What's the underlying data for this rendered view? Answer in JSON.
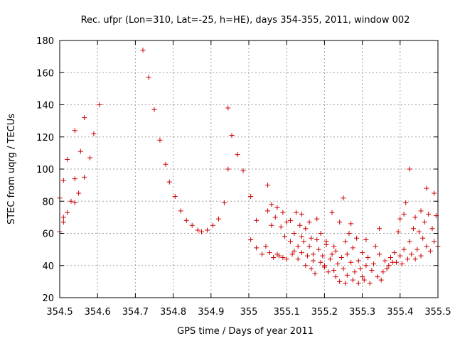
{
  "chart_data": {
    "type": "scatter",
    "title": "Rec. ufpr (Lon=310, Lat=-25, h=HE), days 354-355, 2011, window 002",
    "xlabel": "GPS time / Days of year 2011",
    "ylabel": "STEC from uqrg / TECUs",
    "xlim": [
      354.5,
      355.5
    ],
    "ylim": [
      20,
      180
    ],
    "xticks": [
      "354.5",
      "354.6",
      "354.7",
      "354.8",
      "354.9",
      "355",
      "355.1",
      "355.2",
      "355.3",
      "355.4",
      "355.5"
    ],
    "yticks": [
      "20",
      "40",
      "60",
      "80",
      "100",
      "120",
      "140",
      "160",
      "180"
    ],
    "grid": true,
    "marker": "+",
    "color": "#cc0000",
    "points": [
      [
        354.5,
        61
      ],
      [
        354.5,
        82
      ],
      [
        354.51,
        67
      ],
      [
        354.51,
        70
      ],
      [
        354.51,
        93
      ],
      [
        354.52,
        73
      ],
      [
        354.52,
        106
      ],
      [
        354.53,
        80
      ],
      [
        354.54,
        79
      ],
      [
        354.54,
        94
      ],
      [
        354.54,
        124
      ],
      [
        354.55,
        85
      ],
      [
        354.555,
        111
      ],
      [
        354.565,
        95
      ],
      [
        354.565,
        132
      ],
      [
        354.58,
        107
      ],
      [
        354.59,
        122
      ],
      [
        354.605,
        140
      ],
      [
        354.72,
        174
      ],
      [
        354.735,
        157
      ],
      [
        354.75,
        137
      ],
      [
        354.765,
        118
      ],
      [
        354.78,
        103
      ],
      [
        354.79,
        92
      ],
      [
        354.805,
        83
      ],
      [
        354.82,
        74
      ],
      [
        354.835,
        68
      ],
      [
        354.85,
        65
      ],
      [
        354.865,
        62
      ],
      [
        354.875,
        61
      ],
      [
        354.89,
        62
      ],
      [
        354.905,
        65
      ],
      [
        354.92,
        69
      ],
      [
        354.935,
        79
      ],
      [
        354.945,
        100
      ],
      [
        354.945,
        138
      ],
      [
        354.955,
        121
      ],
      [
        354.97,
        109
      ],
      [
        354.985,
        99
      ],
      [
        355.005,
        83
      ],
      [
        355.005,
        56
      ],
      [
        355.02,
        68
      ],
      [
        355.02,
        51
      ],
      [
        355.035,
        47
      ],
      [
        355.045,
        52
      ],
      [
        355.05,
        74
      ],
      [
        355.05,
        90
      ],
      [
        355.055,
        48
      ],
      [
        355.06,
        65
      ],
      [
        355.06,
        78
      ],
      [
        355.065,
        45
      ],
      [
        355.07,
        70
      ],
      [
        355.075,
        76
      ],
      [
        355.075,
        47
      ],
      [
        355.08,
        46
      ],
      [
        355.085,
        64
      ],
      [
        355.09,
        73
      ],
      [
        355.09,
        45
      ],
      [
        355.095,
        58
      ],
      [
        355.1,
        67
      ],
      [
        355.1,
        44
      ],
      [
        355.11,
        68
      ],
      [
        355.11,
        55
      ],
      [
        355.115,
        47
      ],
      [
        355.12,
        60
      ],
      [
        355.12,
        49
      ],
      [
        355.125,
        73
      ],
      [
        355.13,
        44
      ],
      [
        355.13,
        52
      ],
      [
        355.135,
        65
      ],
      [
        355.14,
        72
      ],
      [
        355.14,
        58
      ],
      [
        355.14,
        48
      ],
      [
        355.145,
        55
      ],
      [
        355.15,
        40
      ],
      [
        355.15,
        63
      ],
      [
        355.155,
        46
      ],
      [
        355.16,
        52
      ],
      [
        355.16,
        67
      ],
      [
        355.165,
        38
      ],
      [
        355.165,
        57
      ],
      [
        355.17,
        47
      ],
      [
        355.17,
        43
      ],
      [
        355.175,
        35
      ],
      [
        355.18,
        56
      ],
      [
        355.18,
        69
      ],
      [
        355.185,
        50
      ],
      [
        355.19,
        42
      ],
      [
        355.19,
        60
      ],
      [
        355.195,
        46
      ],
      [
        355.2,
        39
      ],
      [
        355.2,
        40
      ],
      [
        355.205,
        55
      ],
      [
        355.205,
        53
      ],
      [
        355.21,
        36
      ],
      [
        355.215,
        44
      ],
      [
        355.22,
        47
      ],
      [
        355.22,
        73
      ],
      [
        355.225,
        37
      ],
      [
        355.225,
        52
      ],
      [
        355.23,
        33
      ],
      [
        355.23,
        49
      ],
      [
        355.235,
        41
      ],
      [
        355.24,
        30
      ],
      [
        355.24,
        67
      ],
      [
        355.245,
        45
      ],
      [
        355.25,
        38
      ],
      [
        355.25,
        82
      ],
      [
        355.255,
        29
      ],
      [
        355.255,
        55
      ],
      [
        355.26,
        34
      ],
      [
        355.26,
        47
      ],
      [
        355.265,
        60
      ],
      [
        355.27,
        42
      ],
      [
        355.27,
        66
      ],
      [
        355.275,
        31
      ],
      [
        355.275,
        51
      ],
      [
        355.28,
        36
      ],
      [
        355.285,
        57
      ],
      [
        355.29,
        29
      ],
      [
        355.29,
        43
      ],
      [
        355.295,
        38
      ],
      [
        355.3,
        48
      ],
      [
        355.3,
        33
      ],
      [
        355.305,
        31
      ],
      [
        355.31,
        56
      ],
      [
        355.31,
        40
      ],
      [
        355.315,
        45
      ],
      [
        355.32,
        29
      ],
      [
        355.325,
        37
      ],
      [
        355.33,
        41
      ],
      [
        355.335,
        52
      ],
      [
        355.34,
        33
      ],
      [
        355.345,
        47
      ],
      [
        355.345,
        63
      ],
      [
        355.35,
        31
      ],
      [
        355.355,
        36
      ],
      [
        355.36,
        43
      ],
      [
        355.365,
        38
      ],
      [
        355.37,
        40
      ],
      [
        355.375,
        45
      ],
      [
        355.38,
        42
      ],
      [
        355.385,
        48
      ],
      [
        355.39,
        42
      ],
      [
        355.395,
        61
      ],
      [
        355.4,
        46
      ],
      [
        355.4,
        69
      ],
      [
        355.405,
        41
      ],
      [
        355.41,
        50
      ],
      [
        355.41,
        72
      ],
      [
        355.415,
        79
      ],
      [
        355.42,
        44
      ],
      [
        355.425,
        55
      ],
      [
        355.425,
        100
      ],
      [
        355.43,
        47
      ],
      [
        355.435,
        63
      ],
      [
        355.44,
        44
      ],
      [
        355.44,
        70
      ],
      [
        355.445,
        50
      ],
      [
        355.45,
        61
      ],
      [
        355.455,
        46
      ],
      [
        355.455,
        74
      ],
      [
        355.46,
        57
      ],
      [
        355.465,
        67
      ],
      [
        355.47,
        52
      ],
      [
        355.47,
        88
      ],
      [
        355.475,
        72
      ],
      [
        355.48,
        49
      ],
      [
        355.485,
        63
      ],
      [
        355.49,
        85
      ],
      [
        355.49,
        55
      ],
      [
        355.495,
        71
      ],
      [
        355.5,
        52
      ]
    ]
  }
}
